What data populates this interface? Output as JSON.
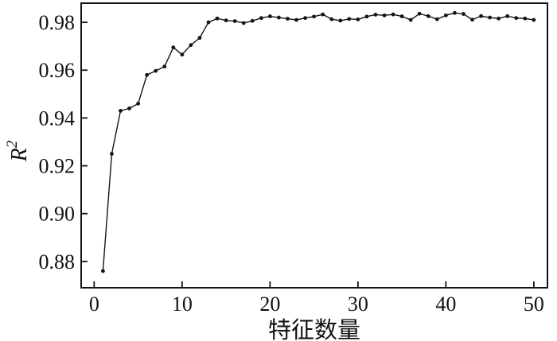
{
  "figure": {
    "background": "#ffffff",
    "line_color": "#141414",
    "marker_color": "#141414",
    "axis_color": "#141414"
  },
  "chart_data": {
    "type": "line",
    "title": "",
    "xlabel": "特征数量",
    "ylabel": "R²",
    "ylabel_base": "R",
    "ylabel_superscript": "2",
    "legend": null,
    "grid": false,
    "marker": "circle",
    "xlim": [
      -1.48,
      51.55
    ],
    "ylim": [
      0.869,
      0.988
    ],
    "xticks": [
      0,
      10,
      20,
      30,
      40,
      50
    ],
    "xtick_labels": [
      "0",
      "10",
      "20",
      "30",
      "40",
      "50"
    ],
    "yticks": [
      0.88,
      0.9,
      0.92,
      0.94,
      0.96,
      0.98
    ],
    "ytick_labels": [
      "0.88",
      "0.90",
      "0.92",
      "0.94",
      "0.96",
      "0.98"
    ],
    "x": [
      1,
      2,
      3,
      4,
      5,
      6,
      7,
      8,
      9,
      10,
      11,
      12,
      13,
      14,
      15,
      16,
      17,
      18,
      19,
      20,
      21,
      22,
      23,
      24,
      25,
      26,
      27,
      28,
      29,
      30,
      31,
      32,
      33,
      34,
      35,
      36,
      37,
      38,
      39,
      40,
      41,
      42,
      43,
      44,
      45,
      46,
      47,
      48,
      49,
      50
    ],
    "values": [
      0.876,
      0.925,
      0.943,
      0.944,
      0.946,
      0.958,
      0.9597,
      0.9615,
      0.9695,
      0.9665,
      0.9705,
      0.9735,
      0.98,
      0.9816,
      0.9808,
      0.9805,
      0.9797,
      0.9806,
      0.9818,
      0.9825,
      0.982,
      0.9815,
      0.981,
      0.9818,
      0.9824,
      0.9833,
      0.9813,
      0.9807,
      0.9814,
      0.9812,
      0.9824,
      0.9832,
      0.9829,
      0.9833,
      0.9825,
      0.981,
      0.9836,
      0.9826,
      0.9813,
      0.9829,
      0.9839,
      0.9835,
      0.9811,
      0.9826,
      0.982,
      0.9816,
      0.9826,
      0.9818,
      0.9816,
      0.981
    ]
  }
}
